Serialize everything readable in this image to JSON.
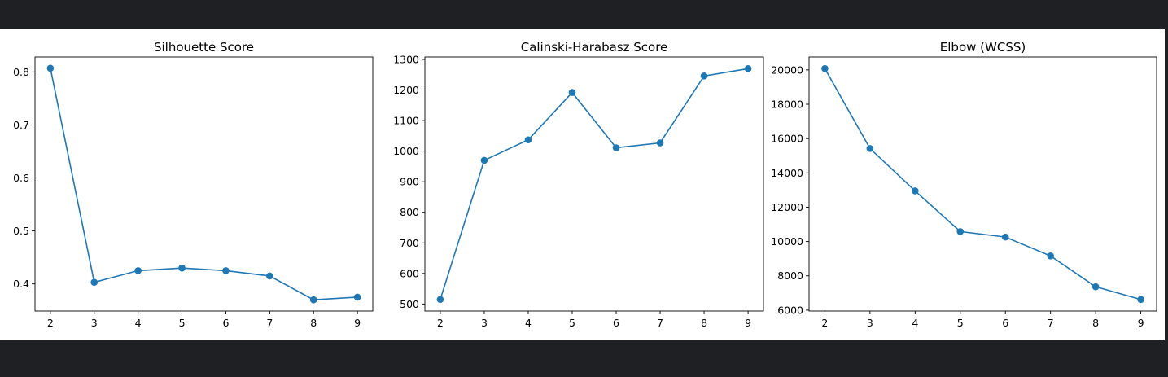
{
  "chart_data": [
    {
      "type": "line",
      "title": "Silhouette Score",
      "x": [
        2,
        3,
        4,
        5,
        6,
        7,
        8,
        9
      ],
      "values": [
        0.807,
        0.403,
        0.425,
        0.43,
        0.425,
        0.415,
        0.37,
        0.375
      ],
      "ylim": [
        0.3488,
        0.8282
      ],
      "xlim": [
        1.65,
        9.35
      ],
      "yticks": [
        0.4,
        0.5,
        0.6,
        0.7,
        0.8
      ],
      "ytick_labels": [
        "0.4",
        "0.5",
        "0.6",
        "0.7",
        "0.8"
      ],
      "xticks": [
        2,
        3,
        4,
        5,
        6,
        7,
        8,
        9
      ],
      "xtick_labels": [
        "2",
        "3",
        "4",
        "5",
        "6",
        "7",
        "8",
        "9"
      ],
      "color": "#1f77b4",
      "grid": false,
      "marker": "circle"
    },
    {
      "type": "line",
      "title": "Calinski-Harabasz Score",
      "x": [
        2,
        3,
        4,
        5,
        6,
        7,
        8,
        9
      ],
      "values": [
        515,
        970,
        1037,
        1192,
        1011,
        1027,
        1246,
        1270
      ],
      "ylim": [
        477,
        1308
      ],
      "xlim": [
        1.65,
        9.35
      ],
      "yticks": [
        500,
        600,
        700,
        800,
        900,
        1000,
        1100,
        1200,
        1300
      ],
      "ytick_labels": [
        "500",
        "600",
        "700",
        "800",
        "900",
        "1000",
        "1100",
        "1200",
        "1300"
      ],
      "xticks": [
        2,
        3,
        4,
        5,
        6,
        7,
        8,
        9
      ],
      "xtick_labels": [
        "2",
        "3",
        "4",
        "5",
        "6",
        "7",
        "8",
        "9"
      ],
      "color": "#1f77b4",
      "grid": false,
      "marker": "circle"
    },
    {
      "type": "line",
      "title": "Elbow (WCSS)",
      "x": [
        2,
        3,
        4,
        5,
        6,
        7,
        8,
        9
      ],
      "values": [
        20080,
        15420,
        12950,
        10580,
        10260,
        9160,
        7360,
        6620
      ],
      "ylim": [
        5947,
        20753
      ],
      "xlim": [
        1.65,
        9.35
      ],
      "yticks": [
        6000,
        8000,
        10000,
        12000,
        14000,
        16000,
        18000,
        20000
      ],
      "ytick_labels": [
        "6000",
        "8000",
        "10000",
        "12000",
        "14000",
        "16000",
        "18000",
        "20000"
      ],
      "xticks": [
        2,
        3,
        4,
        5,
        6,
        7,
        8,
        9
      ],
      "xtick_labels": [
        "2",
        "3",
        "4",
        "5",
        "6",
        "7",
        "8",
        "9"
      ],
      "color": "#1f77b4",
      "grid": false,
      "marker": "circle"
    }
  ]
}
